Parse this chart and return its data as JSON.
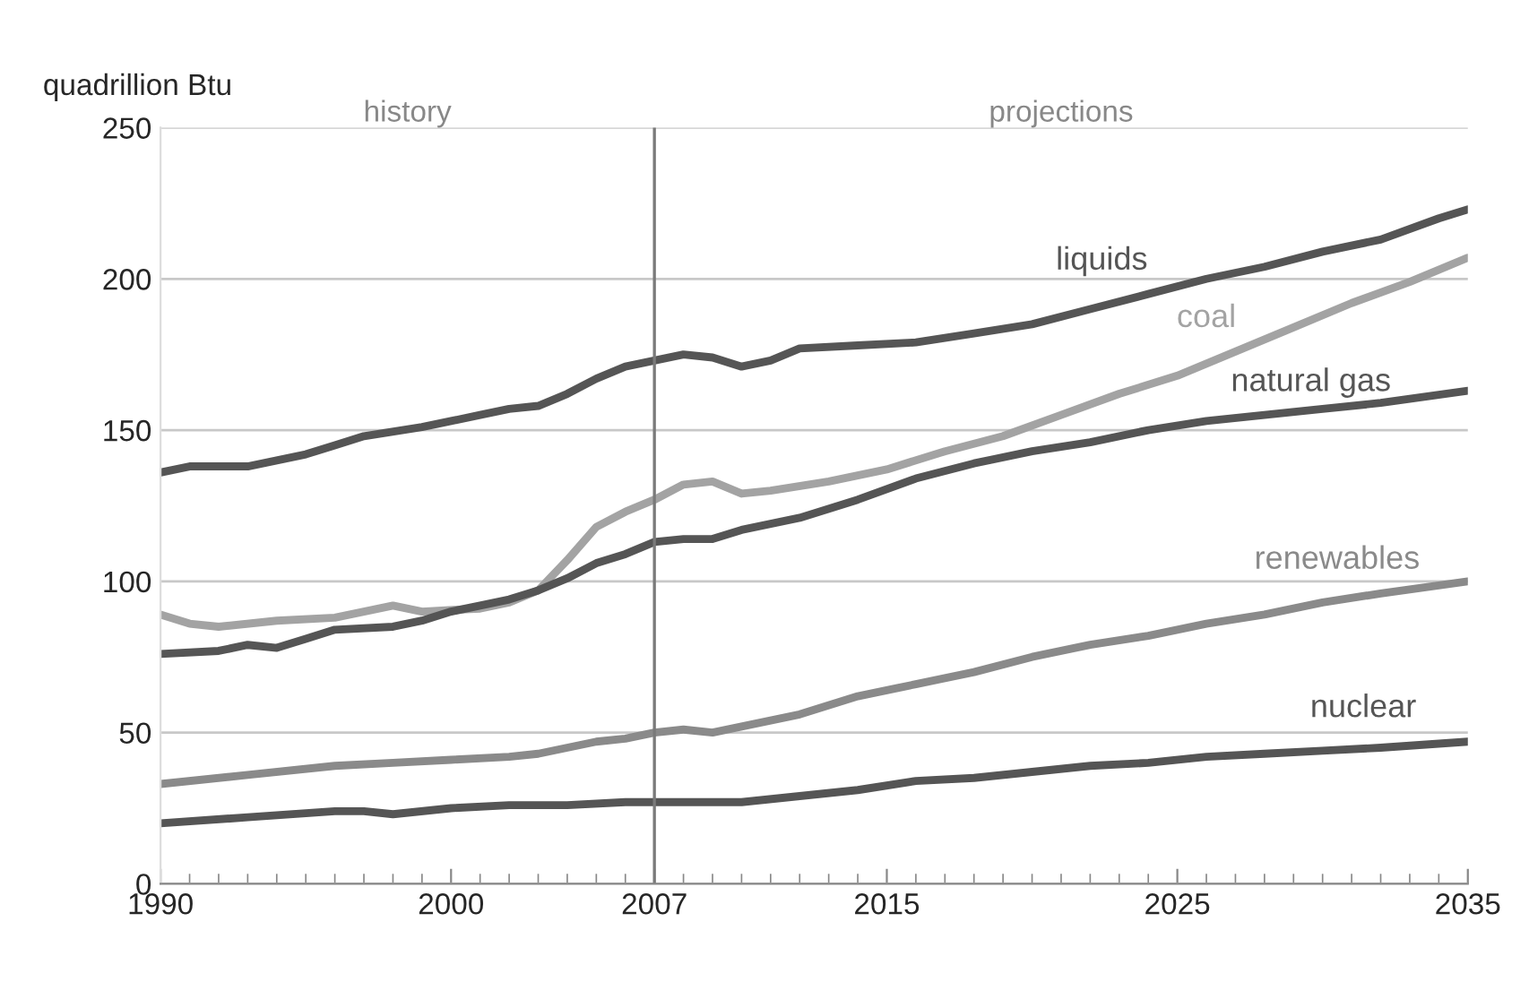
{
  "chart_data": {
    "type": "line",
    "ylabel": "quadrillion Btu",
    "xlim": [
      1990,
      2035
    ],
    "xticks": [
      1990,
      2000,
      2007,
      2015,
      2025,
      2035
    ],
    "ylim": [
      0,
      250
    ],
    "yticks": [
      0,
      50,
      100,
      150,
      200,
      250
    ],
    "grid": "y",
    "legend": false,
    "ref_lines": [
      {
        "axis": "x",
        "value": 2007,
        "color": "#7a7a7a"
      }
    ],
    "annotations": [
      "history",
      "projections"
    ],
    "series": [
      {
        "name": "liquids",
        "color": "#555555",
        "x": [
          1990,
          1991,
          1993,
          1994,
          1995,
          1996,
          1997,
          1999,
          2000,
          2001,
          2002,
          2003,
          2004,
          2005,
          2006,
          2007,
          2008,
          2009,
          2010,
          2011,
          2012,
          2014,
          2016,
          2018,
          2020,
          2022,
          2024,
          2026,
          2028,
          2030,
          2032,
          2034,
          2035
        ],
        "values": [
          136,
          138,
          138,
          140,
          142,
          145,
          148,
          151,
          153,
          155,
          157,
          158,
          162,
          167,
          171,
          173,
          175,
          174,
          171,
          173,
          177,
          178,
          179,
          182,
          185,
          190,
          195,
          200,
          204,
          209,
          213,
          220,
          223
        ]
      },
      {
        "name": "coal",
        "color": "#a3a3a3",
        "x": [
          1990,
          1991,
          1992,
          1994,
          1996,
          1997,
          1998,
          1999,
          2001,
          2002,
          2003,
          2004,
          2005,
          2006,
          2007,
          2008,
          2009,
          2010,
          2011,
          2013,
          2015,
          2017,
          2019,
          2021,
          2023,
          2025,
          2027,
          2029,
          2031,
          2033,
          2035
        ],
        "values": [
          89,
          86,
          85,
          87,
          88,
          90,
          92,
          90,
          91,
          93,
          97,
          107,
          118,
          123,
          127,
          132,
          133,
          129,
          130,
          133,
          137,
          143,
          148,
          155,
          162,
          168,
          176,
          184,
          192,
          199,
          207
        ]
      },
      {
        "name": "natural gas",
        "color": "#555555",
        "x": [
          1990,
          1992,
          1993,
          1994,
          1995,
          1996,
          1998,
          1999,
          2000,
          2001,
          2002,
          2003,
          2004,
          2005,
          2006,
          2007,
          2008,
          2009,
          2010,
          2012,
          2014,
          2016,
          2018,
          2020,
          2022,
          2024,
          2026,
          2028,
          2030,
          2032,
          2035
        ],
        "values": [
          76,
          77,
          79,
          78,
          81,
          84,
          85,
          87,
          90,
          92,
          94,
          97,
          101,
          106,
          109,
          113,
          114,
          114,
          117,
          121,
          127,
          134,
          139,
          143,
          146,
          150,
          153,
          155,
          157,
          159,
          163
        ]
      },
      {
        "name": "renewables",
        "color": "#8a8a8a",
        "x": [
          1990,
          1993,
          1996,
          1998,
          2000,
          2002,
          2003,
          2004,
          2005,
          2006,
          2007,
          2008,
          2009,
          2010,
          2012,
          2014,
          2016,
          2018,
          2020,
          2022,
          2024,
          2026,
          2028,
          2030,
          2032,
          2035
        ],
        "values": [
          33,
          36,
          39,
          40,
          41,
          42,
          43,
          45,
          47,
          48,
          50,
          51,
          50,
          52,
          56,
          62,
          66,
          70,
          75,
          79,
          82,
          86,
          89,
          93,
          96,
          100
        ]
      },
      {
        "name": "nuclear",
        "color": "#555555",
        "x": [
          1990,
          1993,
          1996,
          1997,
          1998,
          2000,
          2002,
          2004,
          2006,
          2007,
          2008,
          2010,
          2012,
          2014,
          2016,
          2018,
          2020,
          2022,
          2024,
          2026,
          2028,
          2030,
          2032,
          2035
        ],
        "values": [
          20,
          22,
          24,
          24,
          23,
          25,
          26,
          26,
          27,
          27,
          27,
          27,
          29,
          31,
          34,
          35,
          37,
          39,
          40,
          42,
          43,
          44,
          45,
          47
        ]
      }
    ]
  }
}
